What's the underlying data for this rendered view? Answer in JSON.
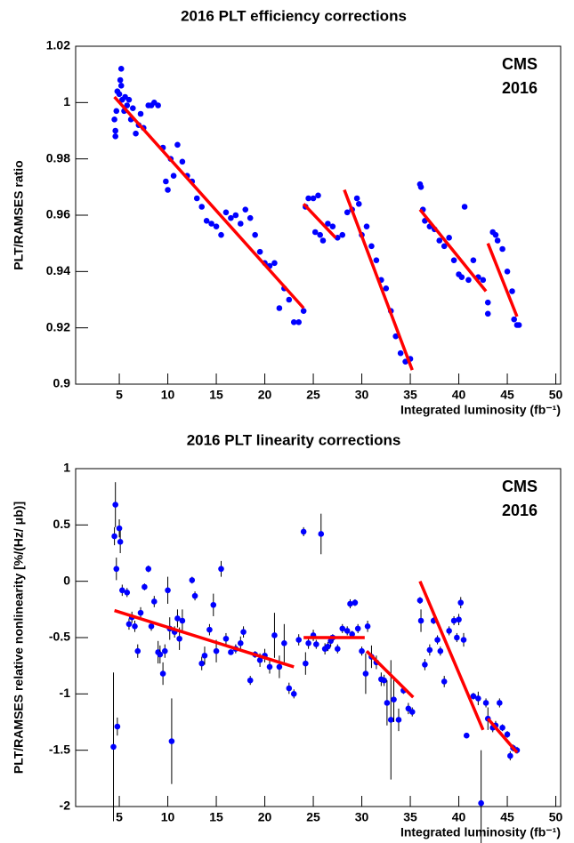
{
  "chart_data": [
    {
      "type": "scatter",
      "title": "2016 PLT efficiency corrections",
      "x_label": "Integrated luminosity (fb⁻¹)",
      "y_label": "PLT/RAMSES ratio",
      "annotations": [
        "CMS",
        "2016"
      ],
      "xlim": [
        0.5,
        50.5
      ],
      "xticks": [
        5,
        10,
        15,
        20,
        25,
        30,
        35,
        40,
        45,
        50
      ],
      "ylim": [
        0.9,
        1.02
      ],
      "yticks": [
        0.9,
        0.92,
        0.94,
        0.96,
        0.98,
        1,
        1.02
      ],
      "series": [
        {
          "color": "#0000ff",
          "x": [
            4.5,
            4.6,
            4.6,
            4.7,
            4.8,
            5.0,
            5.1,
            5.2,
            5.2,
            5.3,
            5.5,
            5.6,
            5.8,
            6.0,
            6.2,
            6.4,
            6.7,
            7.0,
            7.2,
            7.5,
            8.0,
            8.3,
            8.6,
            9.0,
            9.5,
            9.8,
            10.0,
            10.3,
            10.6,
            11.0,
            11.5,
            12.0,
            12.5,
            13.0,
            13.5,
            14.0,
            14.5,
            15.0,
            15.5,
            16.0,
            16.5,
            17.0,
            17.5,
            18.0,
            18.5,
            19.0,
            19.5,
            20.0,
            20.5,
            21.0,
            21.5,
            22.0,
            22.5,
            23.0,
            23.5,
            24.0,
            24.2,
            24.5,
            25.0,
            25.2,
            25.5,
            25.7,
            26.0,
            26.5,
            27.0,
            27.5,
            28.0,
            28.5,
            29.0,
            29.5,
            29.7,
            30.0,
            30.5,
            31.0,
            31.5,
            32.0,
            32.5,
            33.0,
            33.5,
            34.0,
            34.5,
            35.0,
            36.0,
            36.1,
            36.3,
            36.5,
            37.0,
            37.5,
            38.0,
            38.5,
            39.0,
            39.5,
            40.0,
            40.3,
            40.6,
            41.0,
            41.5,
            42.0,
            42.5,
            43.0,
            43.0,
            43.5,
            43.8,
            44.0,
            44.5,
            45.0,
            45.5,
            45.7,
            46.0,
            46.2
          ],
          "values": [
            0.994,
            0.99,
            0.988,
            0.997,
            1.004,
            1.003,
            1.008,
            1.012,
            1.006,
            1.001,
            0.997,
            1.002,
            0.999,
            1.001,
            0.994,
            0.998,
            0.989,
            0.992,
            0.996,
            0.991,
            0.999,
            0.999,
            1.0,
            0.999,
            0.984,
            0.972,
            0.969,
            0.98,
            0.974,
            0.985,
            0.979,
            0.974,
            0.972,
            0.966,
            0.963,
            0.958,
            0.957,
            0.956,
            0.953,
            0.961,
            0.959,
            0.96,
            0.957,
            0.962,
            0.959,
            0.953,
            0.947,
            0.943,
            0.942,
            0.943,
            0.927,
            0.934,
            0.93,
            0.922,
            0.922,
            0.926,
            0.963,
            0.966,
            0.966,
            0.954,
            0.967,
            0.953,
            0.951,
            0.957,
            0.956,
            0.952,
            0.953,
            0.961,
            0.962,
            0.966,
            0.964,
            0.953,
            0.956,
            0.949,
            0.944,
            0.937,
            0.934,
            0.926,
            0.917,
            0.911,
            0.908,
            0.909,
            0.971,
            0.97,
            0.962,
            0.958,
            0.956,
            0.955,
            0.951,
            0.949,
            0.952,
            0.944,
            0.939,
            0.938,
            0.963,
            0.937,
            0.944,
            0.938,
            0.937,
            0.925,
            0.929,
            0.954,
            0.953,
            0.951,
            0.948,
            0.94,
            0.933,
            0.923,
            0.921,
            0.921
          ]
        }
      ],
      "fit_color": "#ff0000",
      "fit_lines": [
        {
          "x": [
            4.5,
            24
          ],
          "values": [
            1.002,
            0.927
          ]
        },
        {
          "x": [
            24,
            27.3
          ],
          "values": [
            0.964,
            0.952
          ]
        },
        {
          "x": [
            28.2,
            35.2
          ],
          "values": [
            0.969,
            0.905
          ]
        },
        {
          "x": [
            36,
            42.8
          ],
          "values": [
            0.962,
            0.933
          ]
        },
        {
          "x": [
            43,
            46
          ],
          "values": [
            0.95,
            0.924
          ]
        }
      ]
    },
    {
      "type": "scatter",
      "title": "2016 PLT linearity corrections",
      "x_label": "Integrated luminosity (fb⁻¹)",
      "y_label": "PLT/RAMSES relative nonlinearity [%/(Hz/ μb)]",
      "annotations": [
        "CMS",
        "2016"
      ],
      "xlim": [
        0.5,
        50.5
      ],
      "xticks": [
        5,
        10,
        15,
        20,
        25,
        30,
        35,
        40,
        45,
        50
      ],
      "ylim": [
        -2,
        1
      ],
      "yticks": [
        -2,
        -1.5,
        -1,
        -0.5,
        0,
        0.5,
        1
      ],
      "series": [
        {
          "color": "#0000ff",
          "x": [
            4.4,
            4.5,
            4.6,
            4.7,
            4.8,
            5.0,
            5.1,
            5.3,
            5.8,
            6.0,
            6.3,
            6.6,
            6.9,
            7.2,
            7.6,
            8.0,
            8.3,
            8.6,
            9.0,
            9.2,
            9.5,
            9.7,
            10.0,
            10.2,
            10.4,
            10.7,
            11.0,
            11.2,
            11.5,
            12.5,
            12.8,
            13.5,
            13.8,
            14.3,
            14.7,
            15.0,
            15.5,
            16.0,
            16.5,
            17.0,
            17.5,
            17.8,
            18.5,
            19.0,
            19.5,
            20.0,
            20.5,
            21.0,
            21.5,
            22.0,
            22.5,
            23.0,
            23.5,
            24.0,
            24.2,
            24.5,
            25.0,
            25.3,
            25.8,
            26.2,
            26.5,
            26.8,
            27.0,
            27.5,
            28.0,
            28.5,
            28.8,
            29.0,
            29.3,
            29.6,
            30.0,
            30.4,
            30.6,
            31.0,
            31.5,
            32.0,
            32.3,
            32.6,
            33.0,
            33.3,
            33.8,
            34.3,
            34.8,
            35.2,
            36.0,
            36.1,
            36.5,
            37.0,
            37.4,
            37.8,
            38.1,
            38.5,
            39.0,
            39.5,
            39.8,
            40.0,
            40.2,
            40.5,
            40.8,
            41.5,
            42.0,
            42.3,
            42.8,
            43.0,
            43.5,
            43.8,
            44.2,
            44.5,
            45.0,
            45.3,
            45.6,
            46.0
          ],
          "values": [
            -1.47,
            0.4,
            0.68,
            0.11,
            -1.29,
            0.47,
            0.35,
            -0.08,
            -0.1,
            -0.38,
            -0.32,
            -0.4,
            -0.62,
            -0.28,
            -0.05,
            0.11,
            -0.4,
            -0.18,
            -0.63,
            -0.65,
            -0.82,
            -0.62,
            -0.08,
            -0.42,
            -1.42,
            -0.45,
            -0.33,
            -0.51,
            -0.35,
            0.01,
            -0.13,
            -0.73,
            -0.66,
            -0.43,
            -0.21,
            -0.62,
            0.11,
            -0.51,
            -0.63,
            -0.6,
            -0.55,
            -0.45,
            -0.88,
            -0.65,
            -0.7,
            -0.66,
            -0.76,
            -0.48,
            -0.76,
            -0.55,
            -0.95,
            -1.0,
            -0.52,
            0.44,
            -0.73,
            -0.55,
            -0.48,
            -0.56,
            0.42,
            -0.6,
            -0.58,
            -0.53,
            -0.5,
            -0.6,
            -0.42,
            -0.44,
            -0.2,
            -0.47,
            -0.19,
            -0.42,
            -0.62,
            -0.82,
            -0.4,
            -0.67,
            -0.72,
            -0.87,
            -0.88,
            -1.08,
            -1.23,
            -1.05,
            -1.23,
            -0.97,
            -1.13,
            -1.16,
            -0.17,
            -0.35,
            -0.74,
            -0.61,
            -0.35,
            -0.52,
            -0.62,
            -0.89,
            -0.44,
            -0.35,
            -0.5,
            -0.34,
            -0.19,
            -0.52,
            -1.37,
            -1.02,
            -1.04,
            -1.97,
            -1.08,
            -1.22,
            -1.3,
            -1.28,
            -1.08,
            -1.3,
            -1.36,
            -1.55,
            -1.48,
            -1.5
          ],
          "errors": [
            0.66,
            0.08,
            0.2,
            0.1,
            0.08,
            0.08,
            0.1,
            0.05,
            0.04,
            0.05,
            0.05,
            0.05,
            0.06,
            0.05,
            0.03,
            0.03,
            0.04,
            0.05,
            0.1,
            0.08,
            0.1,
            0.06,
            0.12,
            0.1,
            0.38,
            0.05,
            0.08,
            0.1,
            0.1,
            0.03,
            0.04,
            0.06,
            0.08,
            0.05,
            0.1,
            0.1,
            0.07,
            0.05,
            0.02,
            0.04,
            0.06,
            0.05,
            0.04,
            0.03,
            0.06,
            0.06,
            0.06,
            0.2,
            0.1,
            0.17,
            0.05,
            0.04,
            0.05,
            0.04,
            0.1,
            0.05,
            0.05,
            0.04,
            0.18,
            0.05,
            0.04,
            0.05,
            0.03,
            0.04,
            0.04,
            0.04,
            0.04,
            0.03,
            0.03,
            0.04,
            0.04,
            0.18,
            0.05,
            0.1,
            0.06,
            0.06,
            0.05,
            0.2,
            0.53,
            0.2,
            0.1,
            0.03,
            0.05,
            0.04,
            0.03,
            0.1,
            0.05,
            0.05,
            0.03,
            0.04,
            0.04,
            0.05,
            0.04,
            0.04,
            0.04,
            0.05,
            0.05,
            0.06,
            0.02,
            0.03,
            0.06,
            0.47,
            0.04,
            0.1,
            0.04,
            0.04,
            0.04,
            0.03,
            0.03,
            0.04,
            0.03,
            0.03
          ]
        }
      ],
      "fit_color": "#ff0000",
      "fit_lines": [
        {
          "x": [
            4.5,
            23
          ],
          "values": [
            -0.26,
            -0.76
          ]
        },
        {
          "x": [
            24,
            30.3
          ],
          "values": [
            -0.5,
            -0.5
          ]
        },
        {
          "x": [
            30.5,
            35.3
          ],
          "values": [
            -0.62,
            -1.03
          ]
        },
        {
          "x": [
            36,
            42.5
          ],
          "values": [
            0.0,
            -1.32
          ]
        },
        {
          "x": [
            43,
            46
          ],
          "values": [
            -1.22,
            -1.52
          ]
        }
      ]
    }
  ]
}
